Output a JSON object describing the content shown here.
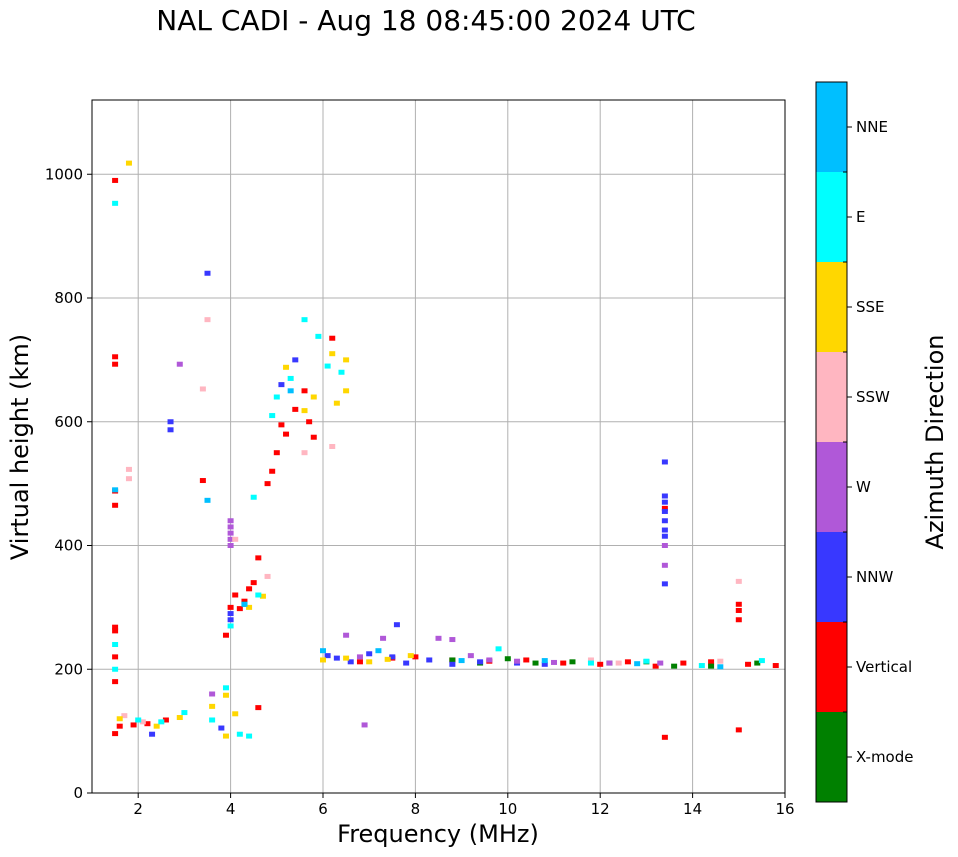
{
  "chart_data": {
    "type": "scatter",
    "title": "NAL CADI - Aug 18 08:45:00 2024 UTC",
    "xlabel": "Frequency (MHz)",
    "ylabel": "Virtual height (km)",
    "xlim": [
      1,
      16
    ],
    "ylim": [
      0,
      1120
    ],
    "xticks": [
      2,
      4,
      6,
      8,
      10,
      12,
      14,
      16
    ],
    "yticks": [
      0,
      200,
      400,
      600,
      800,
      1000
    ],
    "grid": true,
    "colorbar": {
      "label": "Azimuth Direction",
      "categories": [
        "X-mode",
        "Vertical",
        "NNW",
        "W",
        "SSW",
        "SSE",
        "E",
        "NNE"
      ],
      "colors": [
        "#008000",
        "#ff0000",
        "#3838ff",
        "#b058d8",
        "#ffb6c1",
        "#ffd700",
        "#00ffff",
        "#00bfff"
      ]
    },
    "series": [
      {
        "name": "Vertical",
        "points": [
          [
            1.5,
            990
          ],
          [
            1.5,
            705
          ],
          [
            1.5,
            693
          ],
          [
            1.5,
            488
          ],
          [
            1.5,
            465
          ],
          [
            1.5,
            268
          ],
          [
            1.5,
            262
          ],
          [
            1.5,
            220
          ],
          [
            1.5,
            180
          ],
          [
            1.5,
            96
          ],
          [
            1.6,
            108
          ],
          [
            1.9,
            110
          ],
          [
            2.2,
            112
          ],
          [
            2.6,
            118
          ],
          [
            3.4,
            505
          ],
          [
            3.9,
            255
          ],
          [
            4.0,
            300
          ],
          [
            4.1,
            320
          ],
          [
            4.2,
            298
          ],
          [
            4.3,
            310
          ],
          [
            4.4,
            330
          ],
          [
            4.5,
            340
          ],
          [
            4.6,
            380
          ],
          [
            4.8,
            500
          ],
          [
            4.9,
            520
          ],
          [
            5.0,
            550
          ],
          [
            5.2,
            580
          ],
          [
            5.4,
            620
          ],
          [
            5.6,
            650
          ],
          [
            6.2,
            735
          ],
          [
            5.7,
            600
          ],
          [
            5.8,
            575
          ],
          [
            6.8,
            212
          ],
          [
            7.5,
            218
          ],
          [
            8.0,
            220
          ],
          [
            8.8,
            215
          ],
          [
            9.6,
            213
          ],
          [
            10.4,
            215
          ],
          [
            11.2,
            210
          ],
          [
            12.0,
            208
          ],
          [
            12.6,
            212
          ],
          [
            13.2,
            205
          ],
          [
            13.8,
            210
          ],
          [
            14.4,
            212
          ],
          [
            15.2,
            208
          ],
          [
            15.8,
            206
          ],
          [
            13.4,
            460
          ],
          [
            13.4,
            90
          ],
          [
            15.0,
            280
          ],
          [
            15.0,
            295
          ],
          [
            15.0,
            305
          ],
          [
            15.0,
            102
          ],
          [
            5.1,
            595
          ],
          [
            4.6,
            138
          ]
        ]
      },
      {
        "name": "X-mode",
        "points": [
          [
            8.8,
            215
          ],
          [
            9.4,
            210
          ],
          [
            10.6,
            210
          ],
          [
            11.4,
            212
          ],
          [
            12.2,
            210
          ],
          [
            13.0,
            212
          ],
          [
            13.6,
            205
          ],
          [
            14.4,
            205
          ],
          [
            15.4,
            210
          ],
          [
            10.0,
            217
          ],
          [
            4.3,
            305
          ]
        ]
      },
      {
        "name": "NNW",
        "points": [
          [
            3.5,
            840
          ],
          [
            2.7,
            600
          ],
          [
            2.7,
            587
          ],
          [
            2.3,
            95
          ],
          [
            3.8,
            105
          ],
          [
            6.1,
            222
          ],
          [
            6.3,
            218
          ],
          [
            6.6,
            212
          ],
          [
            7.0,
            225
          ],
          [
            7.5,
            220
          ],
          [
            7.8,
            210
          ],
          [
            8.3,
            215
          ],
          [
            8.8,
            208
          ],
          [
            9.4,
            212
          ],
          [
            10.2,
            210
          ],
          [
            10.8,
            208
          ],
          [
            13.4,
            535
          ],
          [
            13.4,
            480
          ],
          [
            13.4,
            470
          ],
          [
            13.4,
            455
          ],
          [
            13.4,
            440
          ],
          [
            13.4,
            425
          ],
          [
            13.4,
            415
          ],
          [
            13.4,
            338
          ],
          [
            4.0,
            280
          ],
          [
            4.0,
            290
          ],
          [
            5.1,
            660
          ],
          [
            5.4,
            700
          ],
          [
            7.6,
            272
          ]
        ]
      },
      {
        "name": "W",
        "points": [
          [
            4.0,
            440
          ],
          [
            4.0,
            430
          ],
          [
            4.0,
            420
          ],
          [
            4.0,
            410
          ],
          [
            4.0,
            400
          ],
          [
            6.5,
            255
          ],
          [
            6.9,
            110
          ],
          [
            7.3,
            250
          ],
          [
            8.5,
            250
          ],
          [
            8.8,
            248
          ],
          [
            9.2,
            222
          ],
          [
            9.6,
            215
          ],
          [
            10.2,
            213
          ],
          [
            11.0,
            211
          ],
          [
            12.2,
            210
          ],
          [
            13.4,
            368
          ],
          [
            13.4,
            400
          ],
          [
            13.3,
            210
          ],
          [
            6.8,
            220
          ],
          [
            3.6,
            160
          ],
          [
            2.9,
            693
          ]
        ]
      },
      {
        "name": "SSW",
        "points": [
          [
            1.8,
            523
          ],
          [
            1.8,
            508
          ],
          [
            3.5,
            765
          ],
          [
            3.4,
            653
          ],
          [
            4.1,
            410
          ],
          [
            4.8,
            350
          ],
          [
            5.6,
            550
          ],
          [
            6.2,
            560
          ],
          [
            14.6,
            213
          ],
          [
            15.0,
            342
          ],
          [
            12.4,
            210
          ],
          [
            11.8,
            215
          ],
          [
            1.7,
            125
          ],
          [
            2.1,
            115
          ]
        ]
      },
      {
        "name": "SSE",
        "points": [
          [
            1.8,
            1018
          ],
          [
            1.6,
            120
          ],
          [
            2.4,
            108
          ],
          [
            2.9,
            122
          ],
          [
            3.6,
            140
          ],
          [
            3.9,
            158
          ],
          [
            4.1,
            128
          ],
          [
            5.2,
            688
          ],
          [
            5.6,
            618
          ],
          [
            6.2,
            710
          ],
          [
            6.5,
            700
          ],
          [
            6.3,
            630
          ],
          [
            6.5,
            650
          ],
          [
            6.0,
            215
          ],
          [
            6.5,
            218
          ],
          [
            7.0,
            212
          ],
          [
            7.4,
            216
          ],
          [
            7.9,
            222
          ],
          [
            4.4,
            300
          ],
          [
            4.7,
            318
          ],
          [
            5.8,
            640
          ],
          [
            3.9,
            92
          ]
        ]
      },
      {
        "name": "E",
        "points": [
          [
            1.5,
            953
          ],
          [
            1.5,
            240
          ],
          [
            1.5,
            200
          ],
          [
            2.0,
            118
          ],
          [
            2.5,
            115
          ],
          [
            3.0,
            130
          ],
          [
            3.9,
            170
          ],
          [
            4.2,
            95
          ],
          [
            4.4,
            92
          ],
          [
            4.9,
            610
          ],
          [
            5.0,
            640
          ],
          [
            5.3,
            670
          ],
          [
            5.6,
            765
          ],
          [
            5.9,
            738
          ],
          [
            6.1,
            690
          ],
          [
            6.4,
            680
          ],
          [
            4.0,
            270
          ],
          [
            4.6,
            320
          ],
          [
            9.8,
            233
          ],
          [
            11.8,
            210
          ],
          [
            13.0,
            213
          ],
          [
            14.2,
            206
          ],
          [
            15.5,
            214
          ],
          [
            3.6,
            118
          ],
          [
            4.5,
            478
          ]
        ]
      },
      {
        "name": "NNE",
        "points": [
          [
            1.5,
            490
          ],
          [
            3.5,
            473
          ],
          [
            4.3,
            305
          ],
          [
            5.3,
            650
          ],
          [
            6.0,
            230
          ],
          [
            7.2,
            230
          ],
          [
            9.0,
            214
          ],
          [
            10.8,
            214
          ],
          [
            12.8,
            209
          ],
          [
            14.6,
            204
          ]
        ]
      }
    ]
  }
}
